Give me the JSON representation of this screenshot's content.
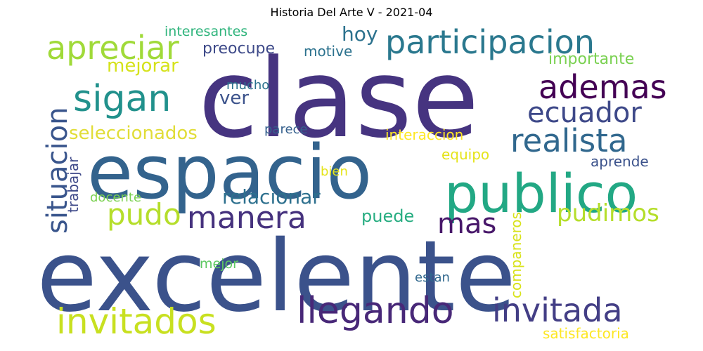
{
  "title": "Historia Del Arte V - 2021-04",
  "words": [
    {
      "text": "clase",
      "color": "#463480"
    },
    {
      "text": "espacio",
      "color": "#33638d"
    },
    {
      "text": "excelente",
      "color": "#3b528b"
    },
    {
      "text": "publico",
      "color": "#22a884"
    },
    {
      "text": "participacion",
      "color": "#2a788e"
    },
    {
      "text": "apreciar",
      "color": "#a0da39"
    },
    {
      "text": "sigan",
      "color": "#21918c"
    },
    {
      "text": "ademas",
      "color": "#440154"
    },
    {
      "text": "ecuador",
      "color": "#3e4989"
    },
    {
      "text": "realista",
      "color": "#31688e"
    },
    {
      "text": "invitados",
      "color": "#c8e020"
    },
    {
      "text": "llegando",
      "color": "#482878"
    },
    {
      "text": "invitada",
      "color": "#433e85"
    },
    {
      "text": "manera",
      "color": "#46327e"
    },
    {
      "text": "relacionar",
      "color": "#2d708e"
    },
    {
      "text": "pudo",
      "color": "#b5de2b"
    },
    {
      "text": "mas",
      "color": "#48186a"
    },
    {
      "text": "pudimos",
      "color": "#b5de2b"
    },
    {
      "text": "situacion",
      "color": "#39558c"
    },
    {
      "text": "seleccionados",
      "color": "#e1dd37"
    },
    {
      "text": "hoy",
      "color": "#2c728e"
    },
    {
      "text": "mejorar",
      "color": "#d5e21a"
    },
    {
      "text": "preocupe",
      "color": "#3e4a89"
    },
    {
      "text": "motive",
      "color": "#2c728e"
    },
    {
      "text": "interesantes",
      "color": "#2fb47c"
    },
    {
      "text": "importante",
      "color": "#7ad151"
    },
    {
      "text": "ver",
      "color": "#3b528b"
    },
    {
      "text": "mucho",
      "color": "#2c728e"
    },
    {
      "text": "parece",
      "color": "#35608d"
    },
    {
      "text": "interaccion",
      "color": "#fde725"
    },
    {
      "text": "equipo",
      "color": "#e5e419"
    },
    {
      "text": "aprende",
      "color": "#3b528b"
    },
    {
      "text": "bien",
      "color": "#e5e419"
    },
    {
      "text": "trabajar",
      "color": "#3e4989"
    },
    {
      "text": "docente",
      "color": "#7ad151"
    },
    {
      "text": "puede",
      "color": "#27ad81"
    },
    {
      "text": "companeros",
      "color": "#d8e219"
    },
    {
      "text": "mejor",
      "color": "#5ec962"
    },
    {
      "text": "estan",
      "color": "#31688e"
    },
    {
      "text": "satisfactoria",
      "color": "#fde725"
    }
  ]
}
